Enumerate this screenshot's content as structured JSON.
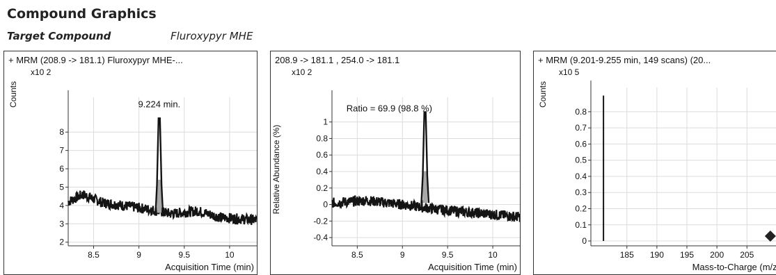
{
  "section_title": "Compound Graphics",
  "target": {
    "label": "Target Compound",
    "value": "Fluroxypyr MHE"
  },
  "chart_data": [
    {
      "type": "line",
      "title": "+ MRM (208.9 -> 181.1) Fluroxypyr MHE-...",
      "ylabel": "Counts",
      "xlabel": "Acquisition Time (min)",
      "y_multiplier": "x10 2",
      "xlim": [
        8.22,
        10.3
      ],
      "ylim": [
        1.8,
        9.9
      ],
      "xticks": [
        8.5,
        9,
        9.5,
        10
      ],
      "yticks": [
        2,
        3,
        4,
        5,
        6,
        7,
        8
      ],
      "annotations": [
        {
          "text": "9.224 min.",
          "x": 9.224,
          "y": 9.5
        }
      ],
      "peak": {
        "x": 9.224,
        "apex": 8.75,
        "base": 3.6,
        "width": 0.05
      },
      "baseline": [
        [
          8.22,
          4.2
        ],
        [
          8.38,
          4.6
        ],
        [
          8.6,
          4.15
        ],
        [
          8.9,
          3.95
        ],
        [
          9.15,
          3.75
        ],
        [
          9.35,
          3.55
        ],
        [
          9.65,
          3.7
        ],
        [
          9.9,
          3.35
        ],
        [
          10.3,
          3.2
        ]
      ]
    },
    {
      "type": "line",
      "title": "208.9 -> 181.1 , 254.0 -> 181.1",
      "ylabel": "Relative Abundance (%)",
      "xlabel": "Acquisition Time (min)",
      "y_multiplier": "x10 2",
      "xlim": [
        8.22,
        10.3
      ],
      "ylim": [
        -0.5,
        1.3
      ],
      "xticks": [
        8.5,
        9,
        9.5,
        10
      ],
      "yticks": [
        -0.4,
        -0.2,
        0,
        0.2,
        0.4,
        0.6,
        0.8,
        1
      ],
      "annotations": [
        {
          "text": "Ratio = 69.9 (98.8 %)",
          "x": 8.38,
          "y": 1.16
        }
      ],
      "peak": {
        "x": 9.25,
        "apex": 1.12,
        "base": 0.02,
        "width": 0.05
      },
      "baseline": [
        [
          8.22,
          0.02
        ],
        [
          8.6,
          0.05
        ],
        [
          9.0,
          0.0
        ],
        [
          9.2,
          -0.03
        ],
        [
          9.4,
          -0.06
        ],
        [
          9.8,
          -0.1
        ],
        [
          10.3,
          -0.15
        ]
      ]
    },
    {
      "type": "bar",
      "title": "+ MRM (9.201-9.255 min, 149 scans) (20...",
      "ylabel": "Counts",
      "xlabel": "Mass-to-Charge (m/z)",
      "y_multiplier": "x10 5",
      "xlim": [
        179,
        211
      ],
      "ylim": [
        -0.03,
        0.95
      ],
      "xticks": [
        185,
        190,
        195,
        200,
        205
      ],
      "yticks": [
        0,
        0.1,
        0.2,
        0.3,
        0.4,
        0.5,
        0.6,
        0.7,
        0.8
      ],
      "bars": [
        {
          "x": 181.1,
          "y": 0.9
        }
      ],
      "markers": [
        {
          "x": 208.9,
          "y": 0.03,
          "shape": "diamond"
        }
      ]
    }
  ],
  "colors": {
    "trace": "#141414",
    "peak_fill": "#a8a8a8",
    "grid": "#dcdcdc",
    "axis": "#333333"
  }
}
